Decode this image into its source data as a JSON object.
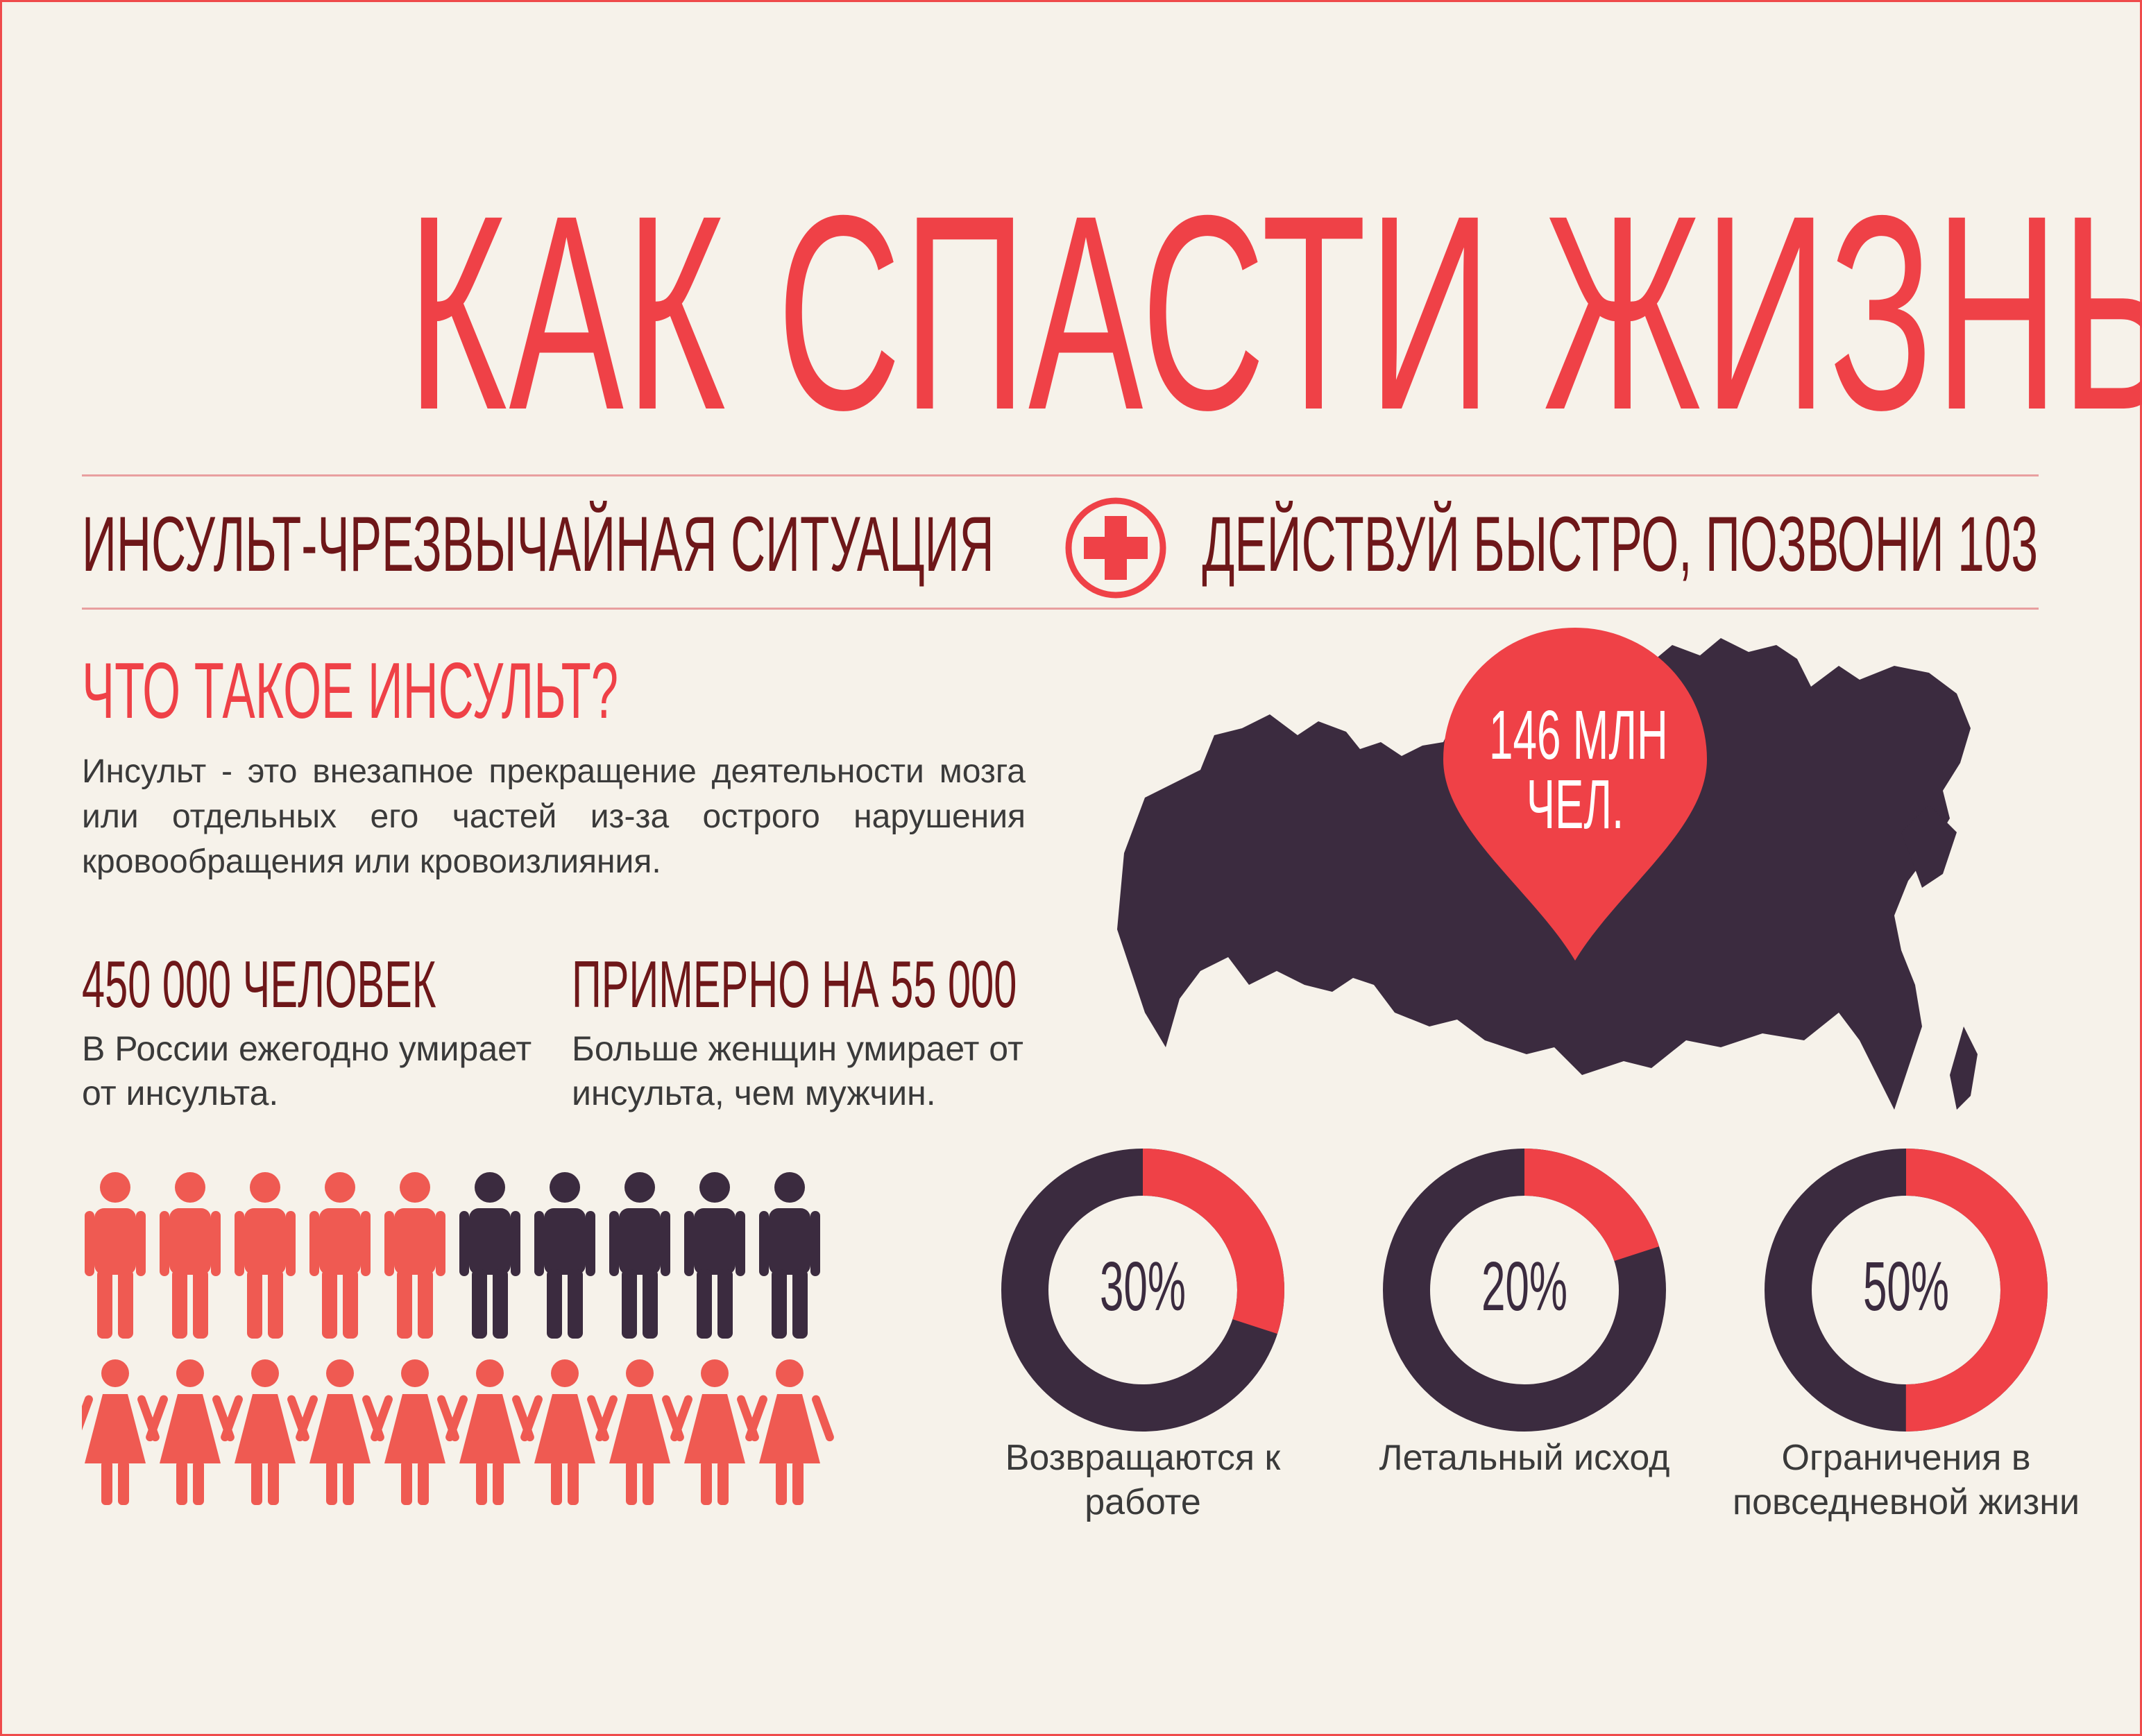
{
  "title": "КАК СПАСТИ ЖИЗНЬ",
  "banner": {
    "left": "ИНСУЛЬТ-ЧРЕЗВЫЧАЙНАЯ СИТУАЦИЯ",
    "right": "ДЕЙСТВУЙ БЫСТРО, ПОЗВОНИ 103",
    "icon": "medical-cross-icon"
  },
  "definition": {
    "heading": "ЧТО ТАКОЕ ИНСУЛЬТ?",
    "text": "Инсульт - это внезапное прекращение деятельности мозга или отдельных его частей из-за острого нарушения кровообращения или кровоизлияния."
  },
  "stats": [
    {
      "title": "450 000 ЧЕЛОВЕК",
      "description": "В России ежегодно умирает от инсульта."
    },
    {
      "title": "ПРИМЕРНО НА 55 000",
      "description": "Больше женщин умирает от инсульта, чем мужчин."
    }
  ],
  "people": {
    "men_total": 10,
    "men_highlighted": 5,
    "women_total": 10,
    "women_highlighted": 10
  },
  "map": {
    "pin_line1": "146 МЛН",
    "pin_line2": "ЧЕЛ."
  },
  "donuts": [
    {
      "value": "30%",
      "fraction": 0.3,
      "label": "Возвращаются к работе"
    },
    {
      "value": "20%",
      "fraction": 0.2,
      "label": "Летальный исход"
    },
    {
      "value": "50%",
      "fraction": 0.5,
      "label": "Ограничения в повседневной жизни"
    }
  ],
  "colors": {
    "red": "#ef4147",
    "dark": "#3b2b3f",
    "maroon": "#6e1719",
    "background": "#f6f2ea",
    "person_red": "#ef5a52"
  }
}
